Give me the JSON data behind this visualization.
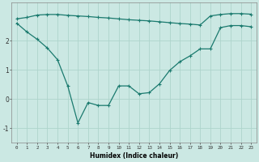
{
  "title": "",
  "xlabel": "Humidex (Indice chaleur)",
  "background_color": "#cbe8e3",
  "grid_color": "#aed4cc",
  "line_color": "#1a7a6e",
  "xlim": [
    -0.5,
    23.5
  ],
  "ylim": [
    -1.5,
    3.3
  ],
  "yticks": [
    -1,
    0,
    1,
    2
  ],
  "xticks": [
    0,
    1,
    2,
    3,
    4,
    5,
    6,
    7,
    8,
    9,
    10,
    11,
    12,
    13,
    14,
    15,
    16,
    17,
    18,
    19,
    20,
    21,
    22,
    23
  ],
  "line1_x": [
    0,
    1,
    2,
    3,
    4,
    5,
    6,
    7,
    8,
    9,
    10,
    11,
    12,
    13,
    14,
    15,
    16,
    17,
    18,
    19,
    20,
    21,
    22,
    23
  ],
  "line1_y": [
    2.75,
    2.8,
    2.88,
    2.9,
    2.9,
    2.87,
    2.85,
    2.83,
    2.8,
    2.78,
    2.75,
    2.72,
    2.7,
    2.68,
    2.65,
    2.62,
    2.59,
    2.57,
    2.54,
    2.85,
    2.9,
    2.93,
    2.93,
    2.91
  ],
  "line2_x": [
    0,
    1,
    2,
    3,
    4,
    5,
    6,
    7,
    8,
    9,
    10,
    11,
    12,
    13,
    14,
    15,
    16,
    17,
    18,
    19,
    20,
    21,
    22,
    23
  ],
  "line2_y": [
    2.6,
    2.3,
    2.05,
    1.75,
    1.35,
    0.45,
    -0.82,
    -0.12,
    -0.22,
    -0.22,
    0.45,
    0.45,
    0.18,
    0.22,
    0.52,
    0.98,
    1.28,
    1.48,
    1.72,
    1.72,
    2.45,
    2.52,
    2.52,
    2.48
  ]
}
